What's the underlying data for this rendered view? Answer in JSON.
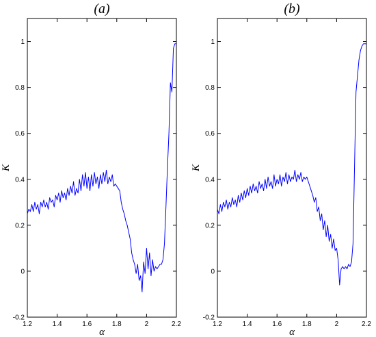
{
  "chart_data": [
    {
      "type": "line",
      "title": "(a)",
      "xlabel": "α",
      "ylabel": "K",
      "xlim": [
        1.2,
        2.2
      ],
      "ylim": [
        -0.2,
        1.1
      ],
      "xticks": [
        "1.2",
        "1.4",
        "1.6",
        "1.8",
        "2",
        "2.2"
      ],
      "yticks": [
        "-0.2",
        "0",
        "0.2",
        "0.4",
        "0.6",
        "0.8",
        "1"
      ],
      "grid": false,
      "line_color": "#0000ff",
      "series": [
        {
          "x": [
            1.2,
            1.21,
            1.22,
            1.23,
            1.24,
            1.25,
            1.26,
            1.27,
            1.28,
            1.29,
            1.3,
            1.31,
            1.32,
            1.33,
            1.34,
            1.35,
            1.36,
            1.37,
            1.38,
            1.39,
            1.4,
            1.41,
            1.42,
            1.43,
            1.44,
            1.45,
            1.46,
            1.47,
            1.48,
            1.49,
            1.5,
            1.51,
            1.52,
            1.53,
            1.54,
            1.55,
            1.56,
            1.57,
            1.58,
            1.59,
            1.6,
            1.61,
            1.62,
            1.63,
            1.64,
            1.65,
            1.66,
            1.67,
            1.68,
            1.69,
            1.7,
            1.71,
            1.72,
            1.73,
            1.74,
            1.75,
            1.76,
            1.77,
            1.78,
            1.79,
            1.8,
            1.81,
            1.82,
            1.83,
            1.84,
            1.85,
            1.86,
            1.87,
            1.88,
            1.89,
            1.9,
            1.91,
            1.92,
            1.93,
            1.94,
            1.95,
            1.96,
            1.97,
            1.98,
            1.99,
            2.0,
            2.01,
            2.02,
            2.03,
            2.04,
            2.05,
            2.06,
            2.07,
            2.08,
            2.09,
            2.1,
            2.11,
            2.12,
            2.13,
            2.14,
            2.15,
            2.16,
            2.17,
            2.18,
            2.19,
            2.2
          ],
          "y": [
            0.25,
            0.27,
            0.26,
            0.29,
            0.26,
            0.3,
            0.27,
            0.29,
            0.25,
            0.3,
            0.28,
            0.31,
            0.28,
            0.3,
            0.27,
            0.32,
            0.3,
            0.31,
            0.28,
            0.33,
            0.31,
            0.34,
            0.3,
            0.35,
            0.32,
            0.34,
            0.31,
            0.36,
            0.33,
            0.37,
            0.34,
            0.39,
            0.33,
            0.36,
            0.34,
            0.4,
            0.35,
            0.42,
            0.37,
            0.43,
            0.36,
            0.41,
            0.35,
            0.42,
            0.37,
            0.43,
            0.38,
            0.41,
            0.36,
            0.42,
            0.38,
            0.43,
            0.39,
            0.44,
            0.38,
            0.41,
            0.39,
            0.42,
            0.37,
            0.38,
            0.37,
            0.36,
            0.35,
            0.3,
            0.27,
            0.25,
            0.22,
            0.2,
            0.17,
            0.14,
            0.08,
            0.05,
            0.03,
            -0.01,
            0.03,
            -0.04,
            -0.02,
            -0.09,
            0.04,
            -0.01,
            0.1,
            0.01,
            0.08,
            -0.02,
            0.05,
            0.0,
            0.02,
            0.01,
            0.02,
            0.03,
            0.03,
            0.05,
            0.12,
            0.28,
            0.45,
            0.6,
            0.82,
            0.78,
            0.97,
            0.99,
            0.99
          ]
        }
      ]
    },
    {
      "type": "line",
      "title": "(b)",
      "xlabel": "α",
      "ylabel": "K",
      "xlim": [
        1.2,
        2.2
      ],
      "ylim": [
        -0.2,
        1.1
      ],
      "xticks": [
        "1.2",
        "1.4",
        "1.6",
        "1.8",
        "2",
        "2.2"
      ],
      "yticks": [
        "-0.2",
        "0",
        "0.2",
        "0.4",
        "0.6",
        "0.8",
        "1"
      ],
      "grid": false,
      "line_color": "#0000ff",
      "series": [
        {
          "x": [
            1.2,
            1.21,
            1.22,
            1.23,
            1.24,
            1.25,
            1.26,
            1.27,
            1.28,
            1.29,
            1.3,
            1.31,
            1.32,
            1.33,
            1.34,
            1.35,
            1.36,
            1.37,
            1.38,
            1.39,
            1.4,
            1.41,
            1.42,
            1.43,
            1.44,
            1.45,
            1.46,
            1.47,
            1.48,
            1.49,
            1.5,
            1.51,
            1.52,
            1.53,
            1.54,
            1.55,
            1.56,
            1.57,
            1.58,
            1.59,
            1.6,
            1.61,
            1.62,
            1.63,
            1.64,
            1.65,
            1.66,
            1.67,
            1.68,
            1.69,
            1.7,
            1.71,
            1.72,
            1.73,
            1.74,
            1.75,
            1.76,
            1.77,
            1.78,
            1.79,
            1.8,
            1.81,
            1.82,
            1.83,
            1.84,
            1.85,
            1.86,
            1.87,
            1.88,
            1.89,
            1.9,
            1.91,
            1.92,
            1.93,
            1.94,
            1.95,
            1.96,
            1.97,
            1.98,
            1.99,
            2.0,
            2.01,
            2.02,
            2.03,
            2.04,
            2.05,
            2.06,
            2.07,
            2.08,
            2.09,
            2.1,
            2.11,
            2.12,
            2.13,
            2.14,
            2.15,
            2.16,
            2.17,
            2.18,
            2.19,
            2.2
          ],
          "y": [
            0.27,
            0.25,
            0.29,
            0.26,
            0.3,
            0.28,
            0.31,
            0.27,
            0.3,
            0.28,
            0.32,
            0.29,
            0.31,
            0.28,
            0.33,
            0.3,
            0.34,
            0.31,
            0.35,
            0.32,
            0.36,
            0.33,
            0.37,
            0.34,
            0.38,
            0.35,
            0.37,
            0.34,
            0.39,
            0.36,
            0.38,
            0.35,
            0.4,
            0.36,
            0.41,
            0.37,
            0.39,
            0.36,
            0.42,
            0.37,
            0.4,
            0.38,
            0.42,
            0.37,
            0.41,
            0.39,
            0.43,
            0.38,
            0.42,
            0.39,
            0.41,
            0.4,
            0.44,
            0.39,
            0.42,
            0.4,
            0.43,
            0.39,
            0.41,
            0.4,
            0.41,
            0.39,
            0.37,
            0.35,
            0.33,
            0.3,
            0.32,
            0.26,
            0.28,
            0.22,
            0.25,
            0.18,
            0.22,
            0.15,
            0.2,
            0.13,
            0.16,
            0.1,
            0.14,
            0.09,
            0.1,
            0.05,
            -0.06,
            0.01,
            0.02,
            0.01,
            0.02,
            0.01,
            0.03,
            0.02,
            0.04,
            0.12,
            0.45,
            0.78,
            0.85,
            0.92,
            0.96,
            0.98,
            0.99,
            0.99,
            0.99
          ]
        }
      ]
    }
  ]
}
